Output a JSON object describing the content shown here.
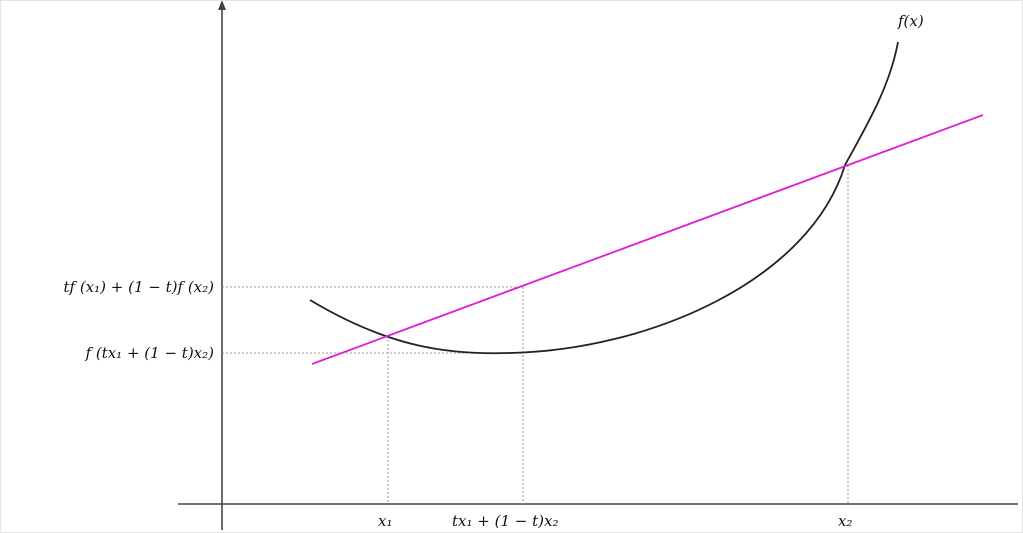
{
  "diagram": {
    "curve_label": "f(x)",
    "x_labels": {
      "x1": "x₁",
      "mid": "tx₁ + (1 − t)x₂",
      "x2": "x₂"
    },
    "y_labels": {
      "chord_value": "tf (x₁) + (1 − t)f (x₂)",
      "function_value": "f (tx₁ + (1 − t)x₂)"
    },
    "colors": {
      "curve": "#222222",
      "chord": "#e020d0",
      "axes": "#444444",
      "guides": "#999999"
    }
  }
}
